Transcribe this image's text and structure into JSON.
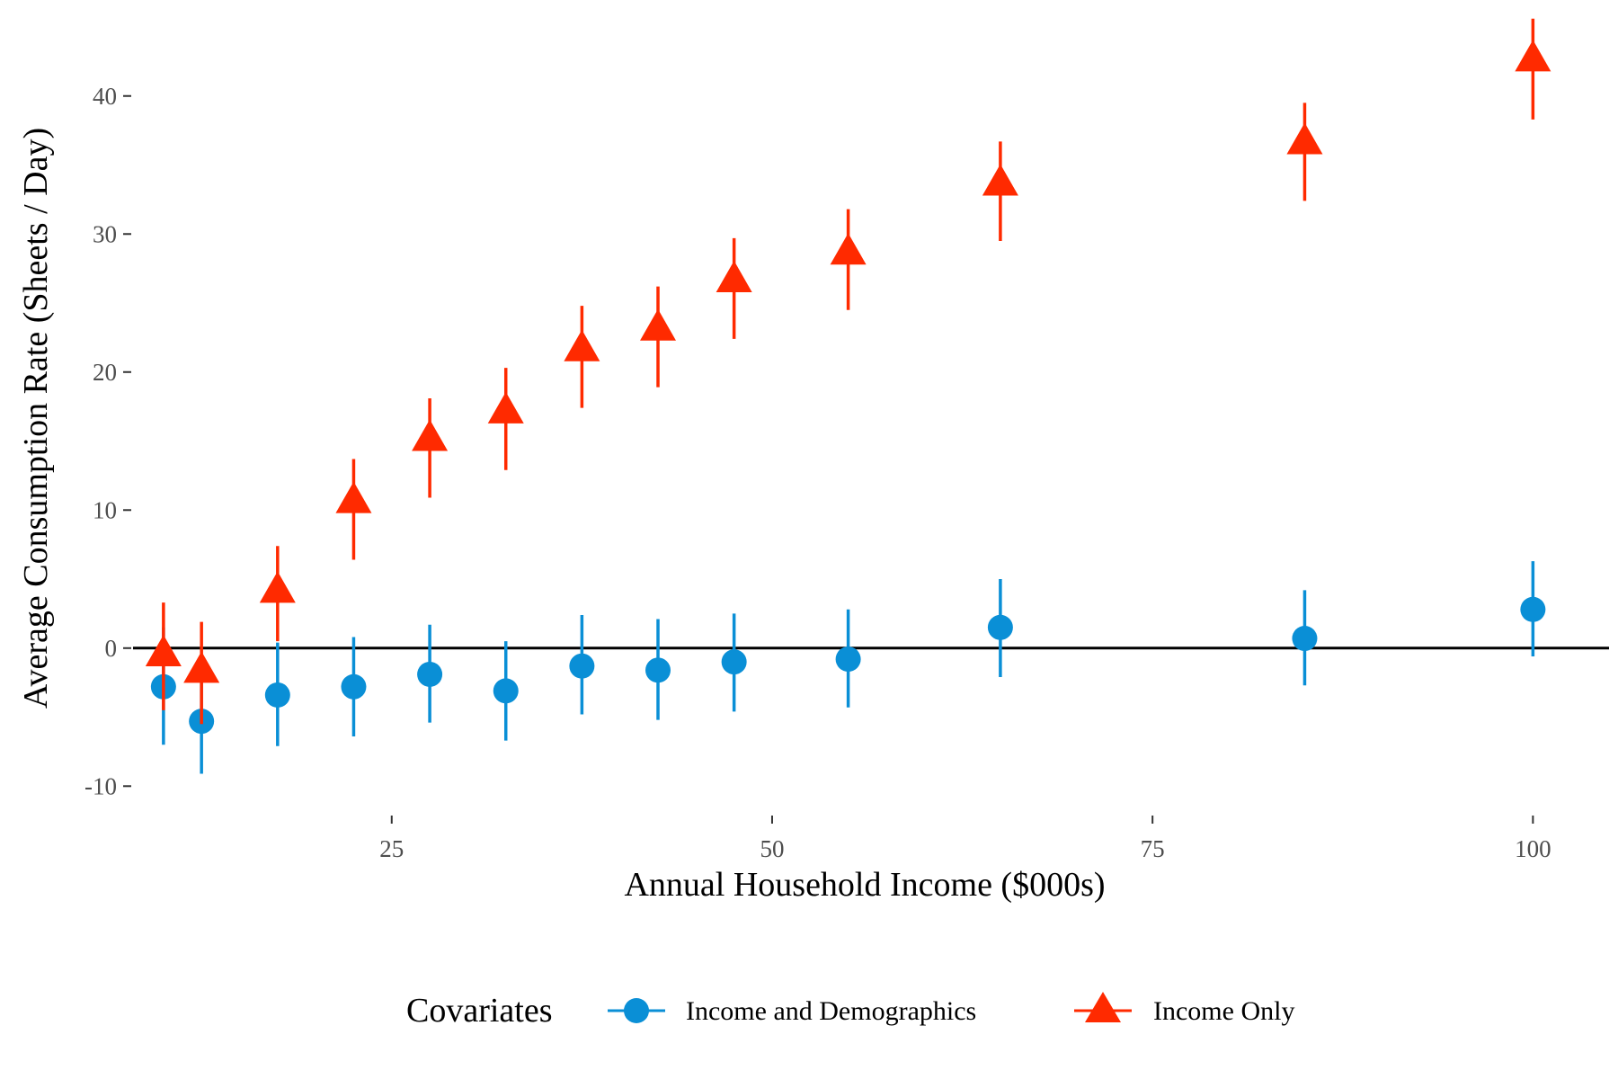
{
  "chart_data": {
    "type": "scatter",
    "title": "",
    "xlabel": "Annual Household Income ($000s)",
    "ylabel": "Average Consumption Rate (Sheets / Day)",
    "xlim": [
      8,
      105
    ],
    "ylim": [
      -12,
      45
    ],
    "x_ticks": [
      25,
      50,
      75,
      100
    ],
    "y_ticks": [
      -10,
      0,
      10,
      20,
      30,
      40
    ],
    "reference_line_y": 0,
    "grid": false,
    "legend": {
      "title": "Covariates",
      "placement": "bottom"
    },
    "series": [
      {
        "name": "Income and Demographics",
        "color": "#0a8fd6",
        "marker": "circle",
        "points": [
          {
            "x": 10,
            "y": -2.8,
            "lo": -7.0,
            "hi": 1.5
          },
          {
            "x": 12.5,
            "y": -5.3,
            "lo": -9.1,
            "hi": -1.3
          },
          {
            "x": 17.5,
            "y": -3.4,
            "lo": -7.1,
            "hi": 0.4
          },
          {
            "x": 22.5,
            "y": -2.8,
            "lo": -6.4,
            "hi": 0.8
          },
          {
            "x": 27.5,
            "y": -1.9,
            "lo": -5.4,
            "hi": 1.7
          },
          {
            "x": 32.5,
            "y": -3.1,
            "lo": -6.7,
            "hi": 0.5
          },
          {
            "x": 37.5,
            "y": -1.3,
            "lo": -4.8,
            "hi": 2.4
          },
          {
            "x": 42.5,
            "y": -1.6,
            "lo": -5.2,
            "hi": 2.1
          },
          {
            "x": 47.5,
            "y": -1.0,
            "lo": -4.6,
            "hi": 2.5
          },
          {
            "x": 55,
            "y": -0.8,
            "lo": -4.3,
            "hi": 2.8
          },
          {
            "x": 65,
            "y": 1.5,
            "lo": -2.1,
            "hi": 5.0
          },
          {
            "x": 85,
            "y": 0.7,
            "lo": -2.7,
            "hi": 4.2
          },
          {
            "x": 100,
            "y": 2.8,
            "lo": -0.6,
            "hi": 6.3
          }
        ]
      },
      {
        "name": "Income Only",
        "color": "#ff2a00",
        "marker": "triangle",
        "points": [
          {
            "x": 10,
            "y": -0.6,
            "lo": -4.5,
            "hi": 3.3
          },
          {
            "x": 12.5,
            "y": -1.8,
            "lo": -5.5,
            "hi": 1.9
          },
          {
            "x": 17.5,
            "y": 4.0,
            "lo": 0.5,
            "hi": 7.4
          },
          {
            "x": 22.5,
            "y": 10.5,
            "lo": 6.4,
            "hi": 13.7
          },
          {
            "x": 27.5,
            "y": 15.0,
            "lo": 10.9,
            "hi": 18.1
          },
          {
            "x": 32.5,
            "y": 17.0,
            "lo": 12.9,
            "hi": 20.3
          },
          {
            "x": 37.5,
            "y": 21.5,
            "lo": 17.4,
            "hi": 24.8
          },
          {
            "x": 42.5,
            "y": 23.0,
            "lo": 18.9,
            "hi": 26.2
          },
          {
            "x": 47.5,
            "y": 26.5,
            "lo": 22.4,
            "hi": 29.7
          },
          {
            "x": 55,
            "y": 28.5,
            "lo": 24.5,
            "hi": 31.8
          },
          {
            "x": 65,
            "y": 33.5,
            "lo": 29.5,
            "hi": 36.7
          },
          {
            "x": 85,
            "y": 36.5,
            "lo": 32.4,
            "hi": 39.5
          },
          {
            "x": 100,
            "y": 42.5,
            "lo": 38.3,
            "hi": 45.6
          }
        ]
      }
    ]
  }
}
